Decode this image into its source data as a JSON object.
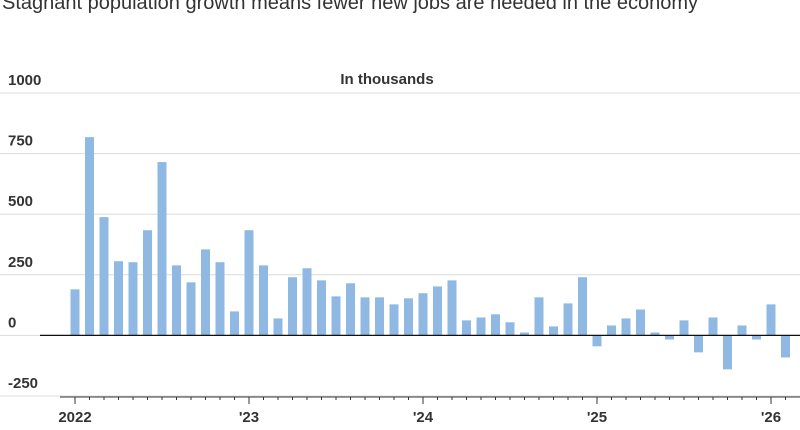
{
  "chart_data": {
    "type": "bar",
    "title": "Stagnant population growth means fewer new jobs are needed in the economy",
    "subtitle": "In thousands",
    "categories": [
      "2022",
      null,
      null,
      null,
      null,
      null,
      null,
      null,
      null,
      null,
      null,
      null,
      "'23",
      null,
      null,
      null,
      null,
      null,
      null,
      null,
      null,
      null,
      null,
      null,
      "'24",
      null,
      null,
      null,
      null,
      null,
      null,
      null,
      null,
      null,
      null,
      null,
      "'25",
      null,
      null,
      null,
      null,
      null,
      null,
      null,
      null,
      null,
      null,
      null,
      "'26",
      null
    ],
    "values": [
      190,
      818,
      488,
      306,
      302,
      434,
      715,
      289,
      219,
      355,
      302,
      99,
      434,
      289,
      70,
      240,
      277,
      227,
      161,
      215,
      157,
      157,
      128,
      153,
      174,
      202,
      227,
      62,
      74,
      87,
      54,
      12,
      157,
      37,
      132,
      240,
      -45,
      41,
      70,
      107,
      12,
      -17,
      62,
      -70,
      74,
      -140,
      41,
      -17,
      128,
      -91
    ],
    "color": "#8fb9e3",
    "ylim": [
      -250,
      1000
    ],
    "yticks": [
      -250,
      0,
      250,
      500,
      750,
      1000
    ],
    "grid": true
  }
}
